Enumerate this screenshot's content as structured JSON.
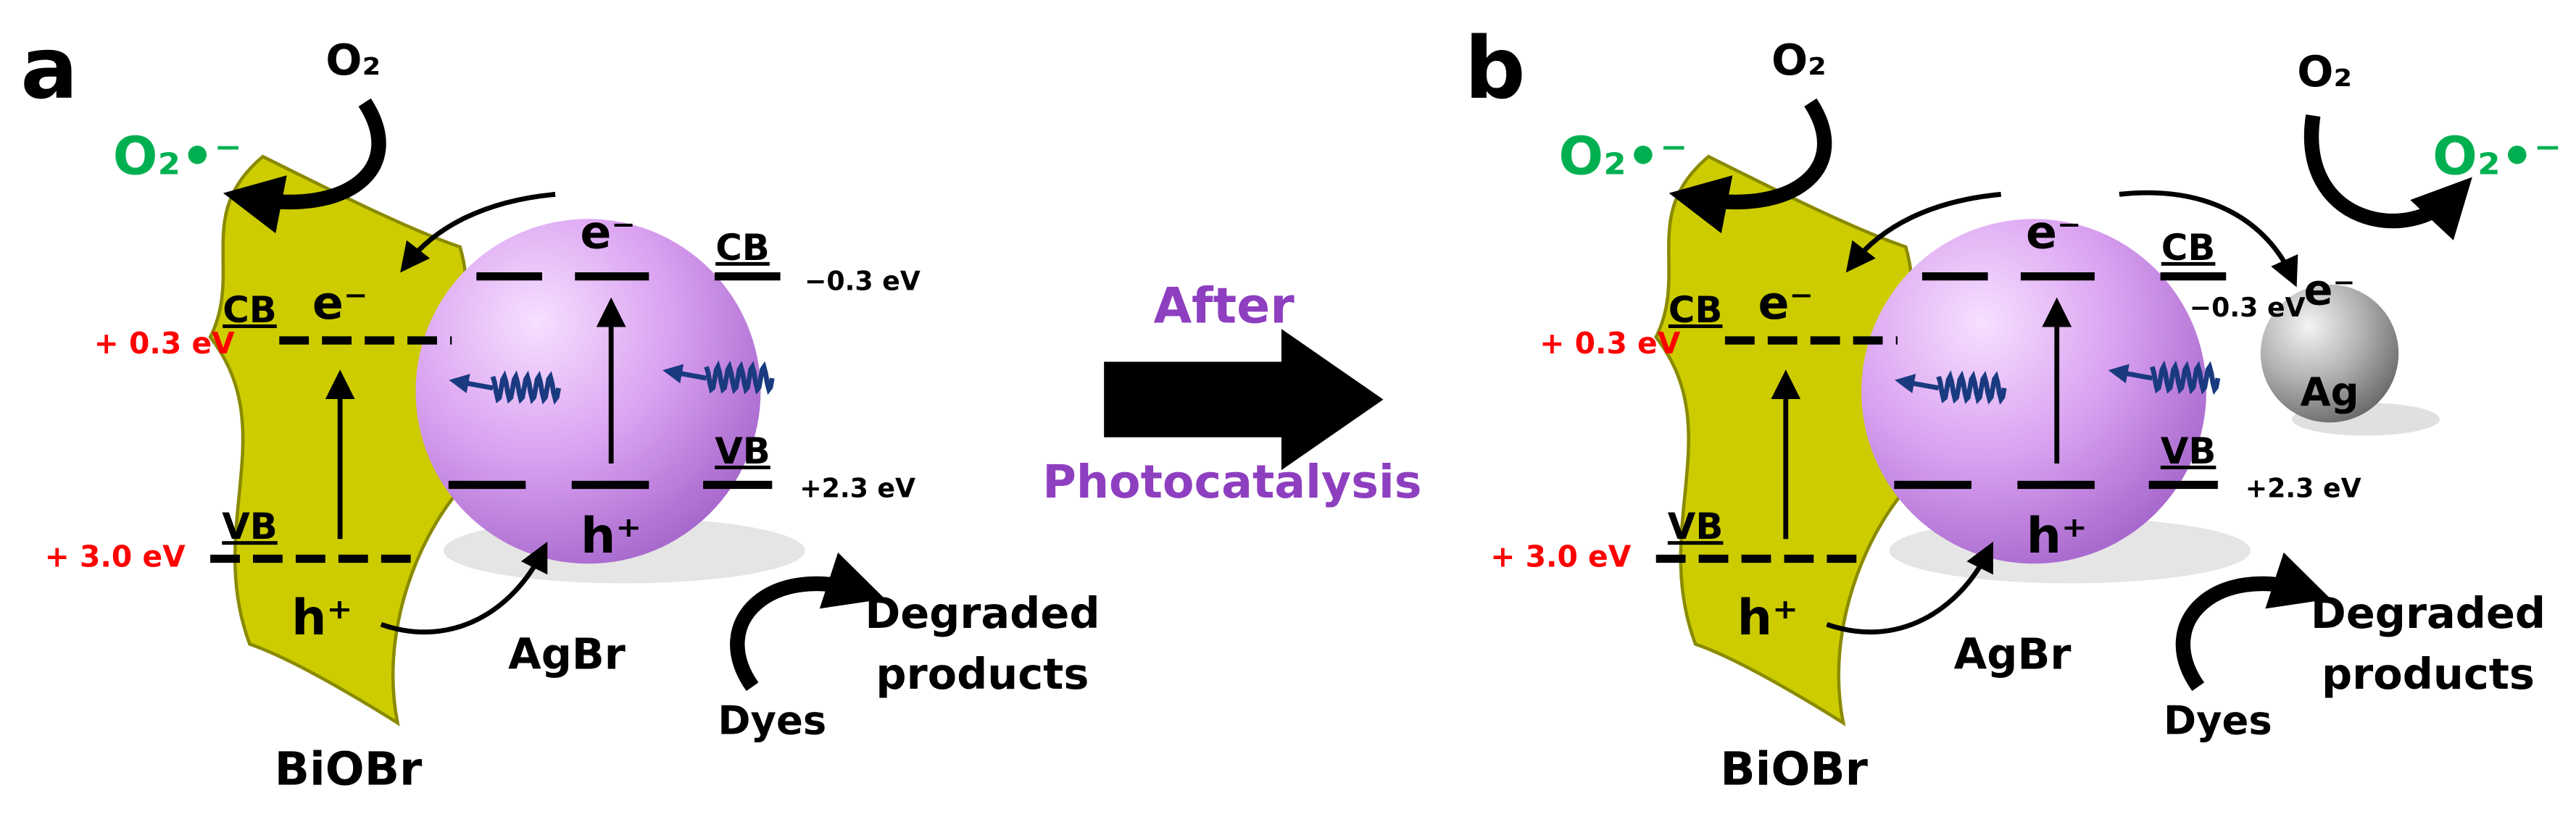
{
  "panels": [
    {
      "label": "a",
      "oxygen": "O₂",
      "superoxide": "O₂•⁻",
      "biobr": {
        "name": "BiOBr",
        "cb": "CB",
        "vb": "VB",
        "cb_potential": "+ 0.3 eV",
        "vb_potential": "+ 3.0 eV",
        "electron": "e⁻",
        "hole": "h⁺"
      },
      "agbr": {
        "name": "AgBr",
        "cb": "CB",
        "vb": "VB",
        "cb_potential": "−0.3 eV",
        "vb_potential": "+2.3 eV",
        "electron": "e⁻",
        "hole": "h⁺"
      },
      "dyes": "Dyes",
      "products": [
        "Degraded",
        "products"
      ]
    },
    {
      "label": "b",
      "oxygen": "O₂",
      "superoxide": "O₂•⁻",
      "biobr": {
        "name": "BiOBr",
        "cb": "CB",
        "vb": "VB",
        "cb_potential": "+ 0.3 eV",
        "vb_potential": "+ 3.0 eV",
        "electron": "e⁻",
        "hole": "h⁺"
      },
      "agbr": {
        "name": "AgBr",
        "cb": "CB",
        "vb": "VB",
        "cb_potential": "−0.3 eV",
        "vb_potential": "+2.3 eV",
        "electron": "e⁻",
        "hole": "h⁺"
      },
      "dyes": "Dyes",
      "products": [
        "Degraded",
        "products"
      ],
      "ag": {
        "name": "Ag",
        "electron": "e⁻",
        "oxygen": "O₂",
        "superoxide": "O₂•⁻"
      }
    }
  ],
  "transition": {
    "line1": "After",
    "line2": "Photocatalysis"
  }
}
